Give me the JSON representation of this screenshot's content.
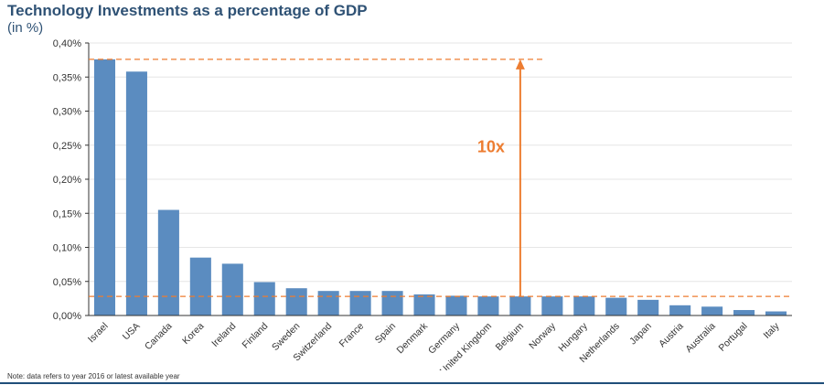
{
  "chart_data": {
    "type": "bar",
    "title": "Technology Investments as a percentage of GDP",
    "subtitle": "(in %)",
    "categories": [
      "Israel",
      "USA",
      "Canada",
      "Korea",
      "Ireland",
      "Finland",
      "Sweden",
      "Switzerland",
      "France",
      "Spain",
      "Denmark",
      "Germany",
      "United Kingdom",
      "Belgium",
      "Norway",
      "Hungary",
      "Netherlands",
      "Japan",
      "Austria",
      "Australia",
      "Portugal",
      "Italy"
    ],
    "values": [
      0.376,
      0.358,
      0.155,
      0.085,
      0.076,
      0.049,
      0.04,
      0.036,
      0.036,
      0.036,
      0.031,
      0.029,
      0.028,
      0.028,
      0.028,
      0.028,
      0.026,
      0.023,
      0.015,
      0.013,
      0.008,
      0.006
    ],
    "ylim": [
      0,
      0.4
    ],
    "yticks": [
      0,
      0.05,
      0.1,
      0.15,
      0.2,
      0.25,
      0.3,
      0.35,
      0.4
    ],
    "ytick_labels": [
      "0,00%",
      "0,05%",
      "0,10%",
      "0,15%",
      "0,20%",
      "0,25%",
      "0,30%",
      "0,35%",
      "0,40%"
    ],
    "grid": true,
    "bar_color": "#5b8cc0",
    "annotation": {
      "text": "10x",
      "color": "#ed7d31",
      "high_value": 0.376,
      "low_value": 0.028,
      "arrow_at_category": "Belgium"
    }
  },
  "note": "Note: data refers to year 2016 or latest available year"
}
